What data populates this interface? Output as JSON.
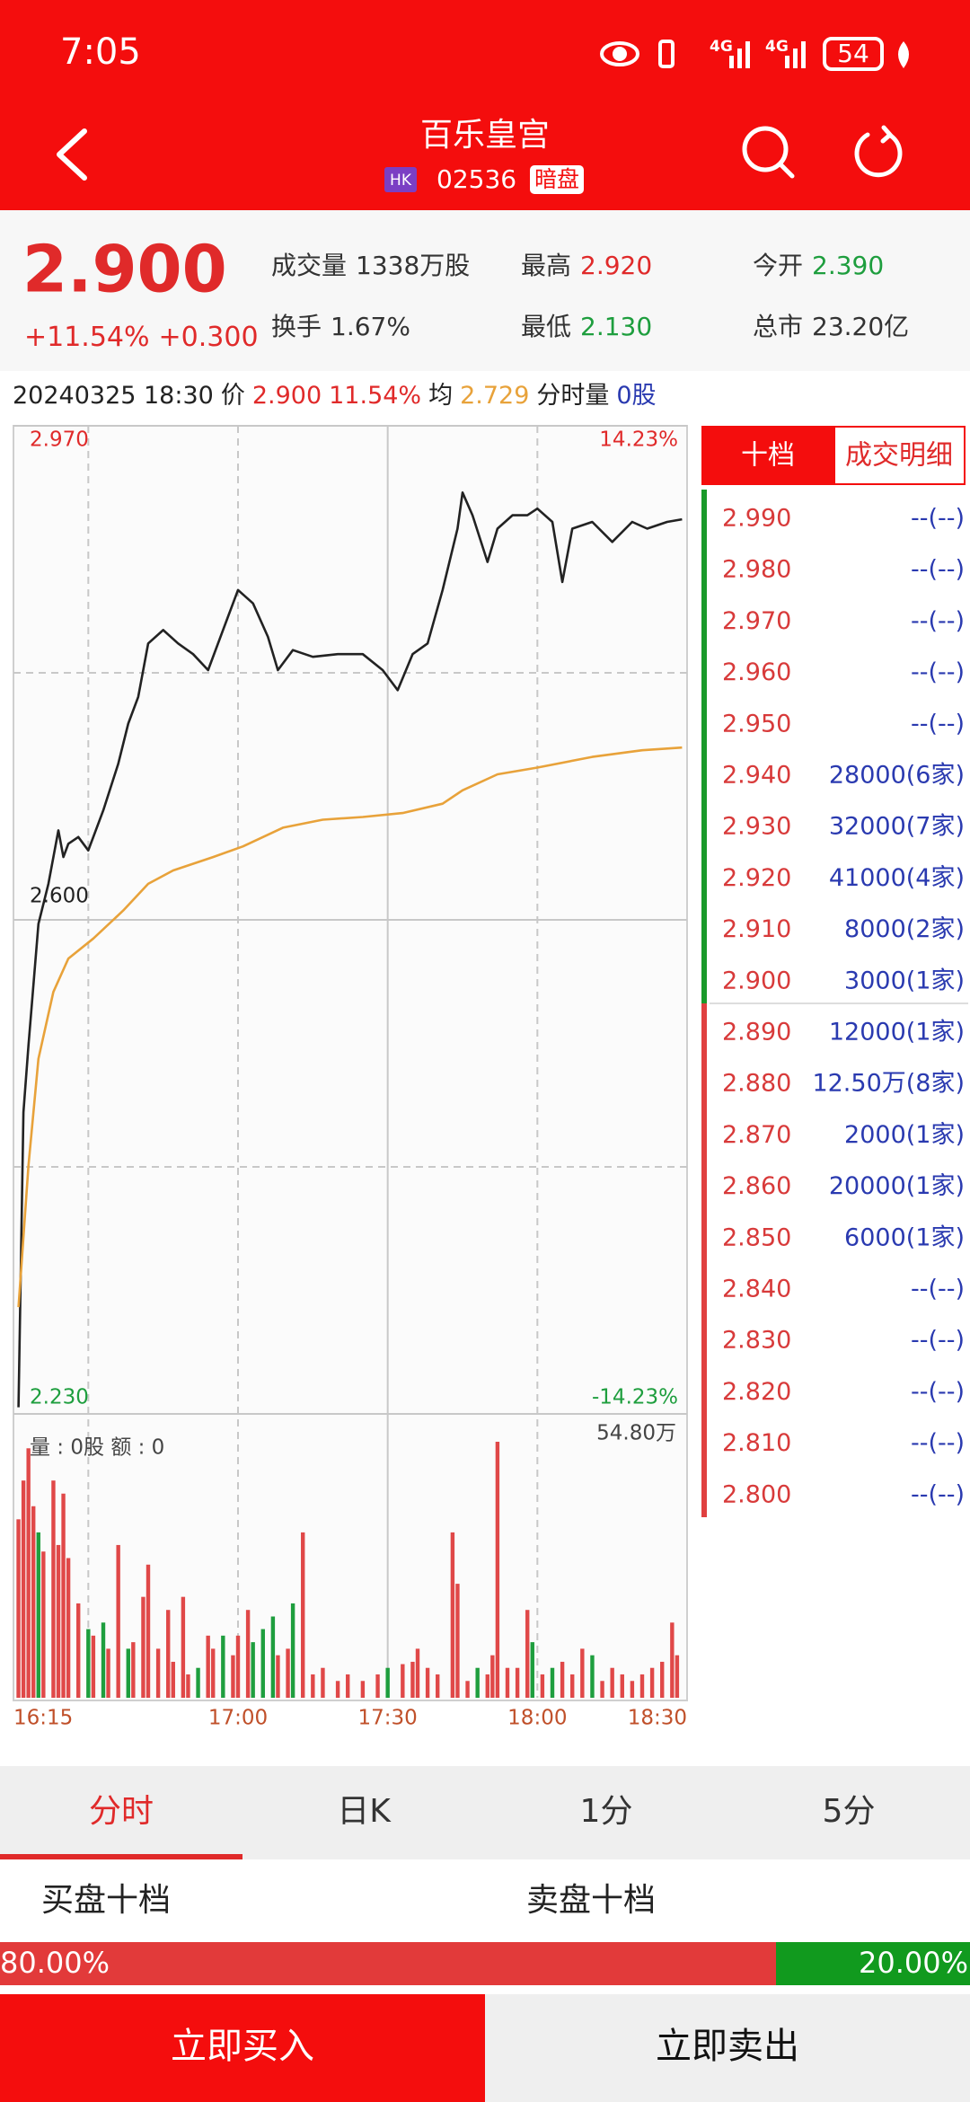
{
  "status_bar": {
    "time": "7:05",
    "network": [
      "4G",
      "4G"
    ],
    "battery": "54"
  },
  "header": {
    "title": "百乐皇宫",
    "market": "HK",
    "code": "02536",
    "tag": "暗盘"
  },
  "quote": {
    "price": "2.900",
    "change_pct": "+11.54%",
    "change": "+0.300",
    "stats": [
      {
        "label": "成交量",
        "value": "1338万股"
      },
      {
        "label": "最高",
        "value": "2.920"
      },
      {
        "label": "今开",
        "value": "2.390"
      },
      {
        "label": "换手",
        "value": "1.67%"
      },
      {
        "label": "最低",
        "value": "2.130"
      },
      {
        "label": "总市",
        "value": "23.20亿"
      }
    ]
  },
  "info_line": {
    "datetime": "20240325 18:30",
    "price": "2.900",
    "change_pct": "11.54%",
    "avg": "2.729",
    "volume_label": "分时量",
    "volume": "0股"
  },
  "chart_data": {
    "type": "line",
    "xlim": [
      975,
      1110
    ],
    "xticks": [
      {
        "value": 975,
        "label": "16:15"
      },
      {
        "value": 1020,
        "label": "17:00"
      },
      {
        "value": 1050,
        "label": "17:30"
      },
      {
        "value": 1080,
        "label": "18:00"
      },
      {
        "value": 1110,
        "label": "18:30"
      }
    ],
    "ylim": [
      2.23,
      2.97
    ],
    "yticks": [
      {
        "value": 2.23,
        "label": "2.230"
      },
      {
        "value": 2.6,
        "label": "2.600"
      },
      {
        "value": 2.97,
        "label": "2.970"
      }
    ],
    "y2lim": [
      -14.23,
      14.23
    ],
    "y2ticks": [
      {
        "value": -14.23,
        "label": "-14.23%"
      },
      {
        "value": 14.23,
        "label": "14.23%"
      }
    ],
    "ygrid": [
      2.415,
      2.785
    ],
    "xgrid": [
      990
    ],
    "series": [
      {
        "name": "价",
        "color": "#222222",
        "x": [
          976,
          977,
          978,
          980,
          982,
          984,
          985,
          986,
          988,
          990,
          993,
          996,
          998,
          1000,
          1002,
          1005,
          1008,
          1011,
          1014,
          1017,
          1020,
          1023,
          1026,
          1028,
          1031,
          1035,
          1040,
          1045,
          1049,
          1052,
          1055,
          1058,
          1061,
          1064,
          1065,
          1067,
          1070,
          1072,
          1075,
          1078,
          1080,
          1083,
          1085,
          1087,
          1091,
          1095,
          1099,
          1102,
          1106,
          1109
        ],
        "values": [
          2.235,
          2.456,
          2.506,
          2.597,
          2.627,
          2.667,
          2.647,
          2.657,
          2.662,
          2.652,
          2.682,
          2.717,
          2.747,
          2.767,
          2.807,
          2.817,
          2.807,
          2.799,
          2.787,
          2.817,
          2.847,
          2.837,
          2.812,
          2.787,
          2.802,
          2.797,
          2.799,
          2.799,
          2.787,
          2.772,
          2.799,
          2.807,
          2.847,
          2.893,
          2.92,
          2.903,
          2.868,
          2.893,
          2.903,
          2.903,
          2.908,
          2.898,
          2.853,
          2.893,
          2.898,
          2.883,
          2.898,
          2.893,
          2.898,
          2.9
        ]
      },
      {
        "name": "均",
        "color": "#e8a23a",
        "x": [
          976,
          978,
          980,
          983,
          986,
          991,
          997,
          1002,
          1007,
          1015,
          1021,
          1029,
          1037,
          1045,
          1053,
          1061,
          1065,
          1072,
          1080,
          1091,
          1101,
          1109
        ],
        "values": [
          2.31,
          2.416,
          2.496,
          2.546,
          2.571,
          2.586,
          2.607,
          2.627,
          2.637,
          2.647,
          2.655,
          2.669,
          2.675,
          2.677,
          2.68,
          2.687,
          2.697,
          2.709,
          2.714,
          2.722,
          2.727,
          2.729
        ]
      }
    ],
    "volume": {
      "label": "量 : 0股 额 : 0",
      "ylim": [
        0,
        54.8
      ],
      "yticks": [
        {
          "value": 54.8,
          "label": "54.80万"
        }
      ],
      "series": [
        {
          "color": "#e04848",
          "x": [
            976,
            977,
            978,
            979,
            981,
            983,
            984,
            985,
            986,
            988,
            991,
            994,
            996,
            999,
            1001,
            1002,
            1004,
            1006,
            1007,
            1009,
            1010,
            1014,
            1015,
            1019,
            1020,
            1022,
            1028,
            1030,
            1033,
            1035,
            1037,
            1040,
            1042,
            1045,
            1048,
            1053,
            1055,
            1056,
            1058,
            1060,
            1063,
            1064,
            1066,
            1070,
            1071,
            1072,
            1074,
            1076,
            1078,
            1081,
            1085,
            1087,
            1089,
            1093,
            1095,
            1097,
            1099,
            1101,
            1103,
            1105,
            1107,
            1108
          ],
          "values": [
            38.2,
            46.5,
            53.4,
            41,
            31.3,
            46.5,
            32.7,
            43.7,
            29.9,
            20.2,
            13.3,
            10.5,
            32.7,
            11.9,
            21.6,
            28.5,
            10.5,
            18.8,
            7.7,
            21.6,
            5,
            13.3,
            10.5,
            9.1,
            13.3,
            18.8,
            9.1,
            10.5,
            35.4,
            5,
            6.4,
            3.6,
            5,
            3.6,
            5,
            7.2,
            7.7,
            10.5,
            6.4,
            5,
            35.4,
            24.4,
            3.6,
            5,
            9.1,
            54.8,
            6.4,
            6.4,
            18.8,
            5,
            7.7,
            5,
            10.5,
            3.6,
            6.4,
            5,
            3.6,
            5,
            6.4,
            7.7,
            16.1,
            9.1
          ]
        },
        {
          "color": "#1e9e3e",
          "x": [
            980,
            990,
            993,
            998,
            1012,
            1017,
            1023,
            1025,
            1027,
            1031,
            1050,
            1068,
            1079,
            1083,
            1091
          ],
          "values": [
            35.4,
            14.7,
            16.1,
            10.5,
            6.4,
            13.3,
            11.9,
            14.7,
            17.4,
            20.2,
            6.4,
            6.4,
            11.9,
            6.4,
            9.1
          ]
        }
      ]
    }
  },
  "order_book": {
    "tabs": [
      "十档",
      "成交明细"
    ],
    "rows": [
      [
        "2.990",
        "--(--)"
      ],
      [
        "2.980",
        "--(--)"
      ],
      [
        "2.970",
        "--(--)"
      ],
      [
        "2.960",
        "--(--)"
      ],
      [
        "2.950",
        "--(--)"
      ],
      [
        "2.940",
        "28000(6家)"
      ],
      [
        "2.930",
        "32000(7家)"
      ],
      [
        "2.920",
        "41000(4家)"
      ],
      [
        "2.910",
        "8000(2家)"
      ],
      [
        "2.900",
        "3000(1家)"
      ],
      [
        "2.890",
        "12000(1家)"
      ],
      [
        "2.880",
        "12.50万(8家)"
      ],
      [
        "2.870",
        "2000(1家)"
      ],
      [
        "2.860",
        "20000(1家)"
      ],
      [
        "2.850",
        "6000(1家)"
      ],
      [
        "2.840",
        "--(--)"
      ],
      [
        "2.830",
        "--(--)"
      ],
      [
        "2.820",
        "--(--)"
      ],
      [
        "2.810",
        "--(--)"
      ],
      [
        "2.800",
        "--(--)"
      ]
    ]
  },
  "tabs": [
    "分时",
    "日K",
    "1分",
    "5分"
  ],
  "depth": {
    "labels": [
      "买盘十档",
      "卖盘十档"
    ],
    "buy": {
      "value": 80,
      "label": "80.00%"
    },
    "sell": {
      "value": 20,
      "label": "20.00%"
    }
  },
  "buttons": [
    "立即买入",
    "立即卖出"
  ]
}
